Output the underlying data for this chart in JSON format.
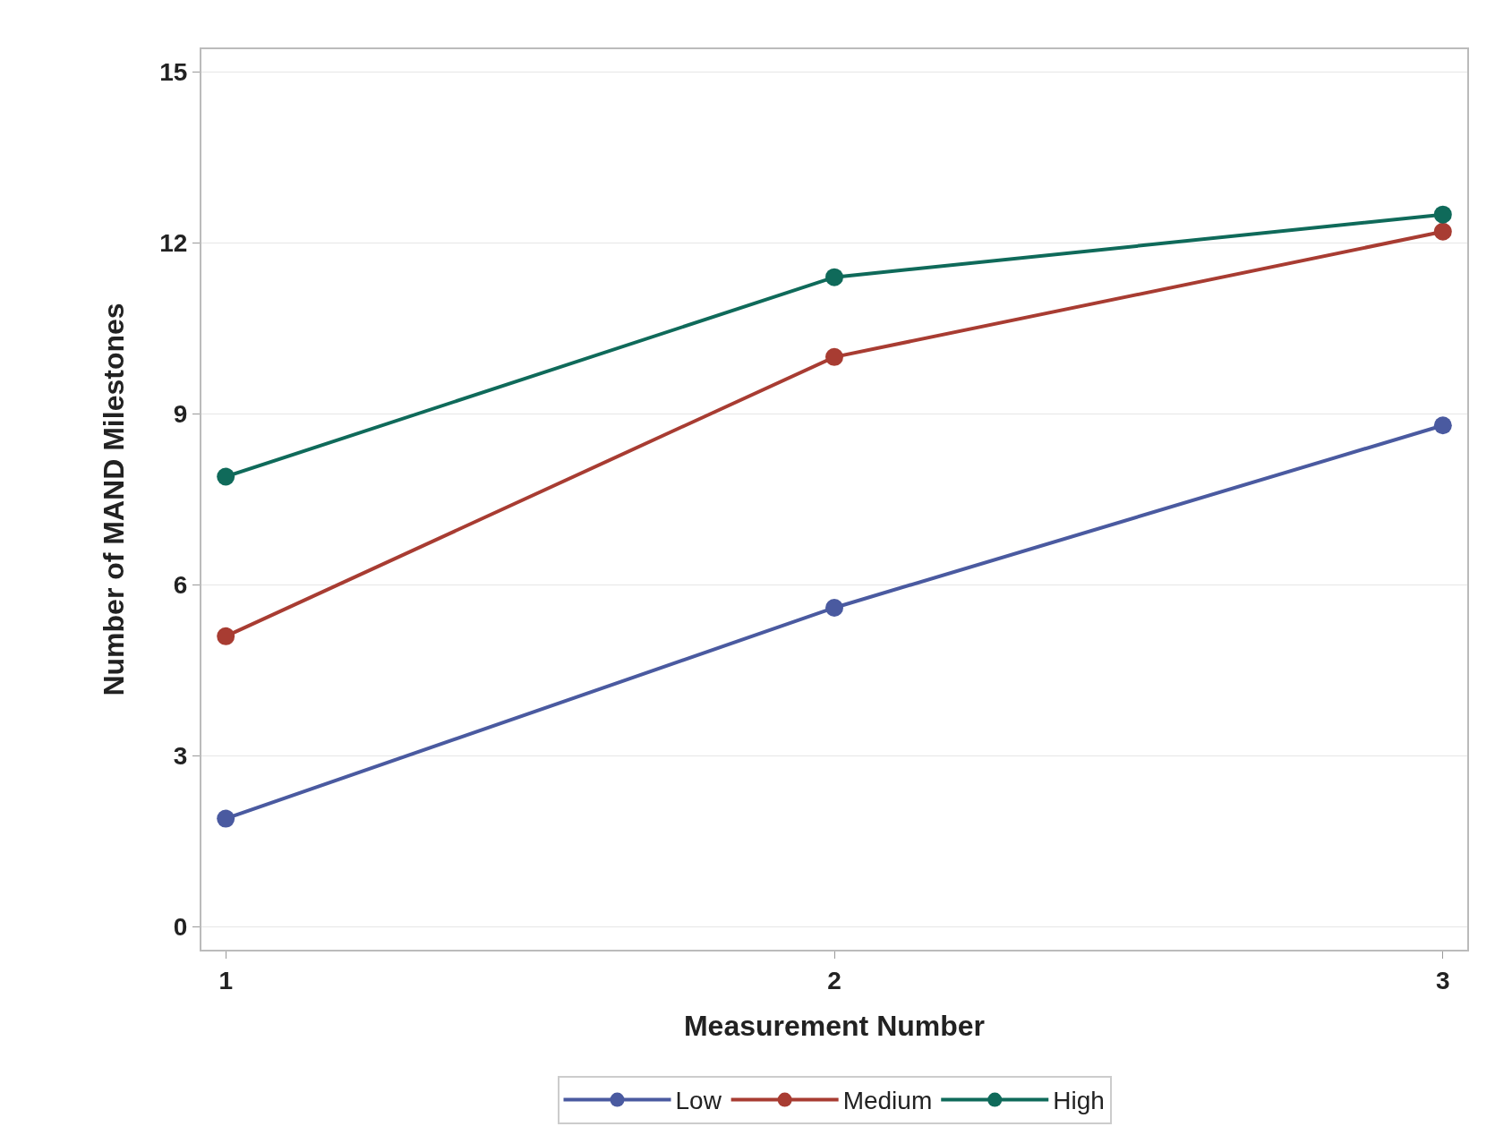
{
  "chart_data": {
    "type": "line",
    "xlabel": "Measurement Number",
    "ylabel": "Number of MAND Milestones",
    "x": [
      1,
      2,
      3
    ],
    "series": [
      {
        "name": "Low",
        "color": "#4a5aa0",
        "values": [
          1.9,
          5.6,
          8.8
        ]
      },
      {
        "name": "Medium",
        "color": "#a83c32",
        "values": [
          5.1,
          10.0,
          12.2
        ]
      },
      {
        "name": "High",
        "color": "#0f6a5a",
        "values": [
          7.9,
          11.4,
          12.5
        ]
      }
    ],
    "xlim": [
      0.96,
      3.04
    ],
    "xticks": [
      1,
      2,
      3
    ],
    "ylim": [
      -0.4,
      15.4
    ],
    "yticks": [
      0,
      3,
      6,
      9,
      12,
      15
    ],
    "grid": "y",
    "legend": "bottom",
    "marker": "circle",
    "line_style": "solid"
  }
}
